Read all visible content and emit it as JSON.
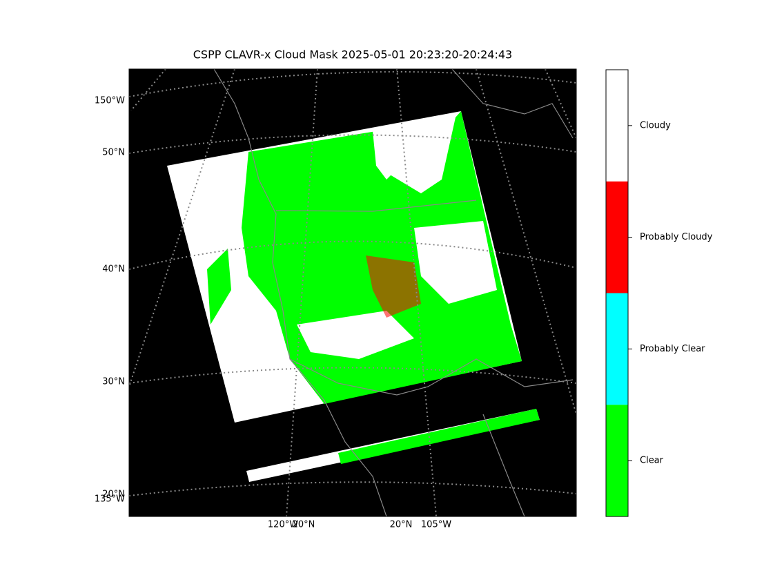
{
  "title": "CSPP CLAVR-x Cloud Mask 2025-05-01 20:23:20-20:24:43",
  "map": {
    "left_labels": [
      "150°W",
      "50°N",
      "40°N",
      "30°N",
      "20°N",
      "135°W"
    ],
    "bottom_labels": [
      "120°W",
      "20°N",
      "20°N",
      "105°W"
    ]
  },
  "colorbar": {
    "categories": [
      {
        "label": "Cloudy",
        "color": "#ffffff"
      },
      {
        "label": "Probably Cloudy",
        "color": "#ff0000"
      },
      {
        "label": "Probably Clear",
        "color": "#00ffff"
      },
      {
        "label": "Clear",
        "color": "#00ff00"
      }
    ]
  }
}
